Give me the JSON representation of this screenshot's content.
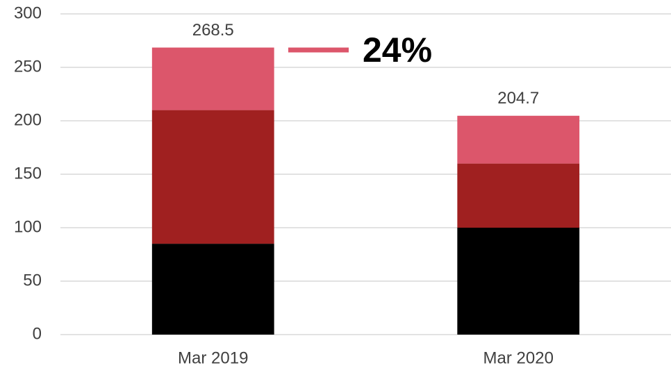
{
  "chart_data": {
    "type": "stacked_bar",
    "categories": [
      "Mar 2019",
      "Mar 2020"
    ],
    "series": [
      {
        "color": "#000000",
        "values": [
          85,
          100
        ]
      },
      {
        "color": "#a02020",
        "values": [
          125,
          60
        ]
      },
      {
        "color": "#dc566b",
        "values": [
          58.5,
          44.7
        ]
      }
    ],
    "totals": [
      268.5,
      204.7
    ],
    "annotation": {
      "text": "24%",
      "color": "#dc566b"
    },
    "ylim": [
      0,
      300
    ],
    "yticks": [
      0,
      50,
      100,
      150,
      200,
      250,
      300
    ],
    "grid": true
  }
}
